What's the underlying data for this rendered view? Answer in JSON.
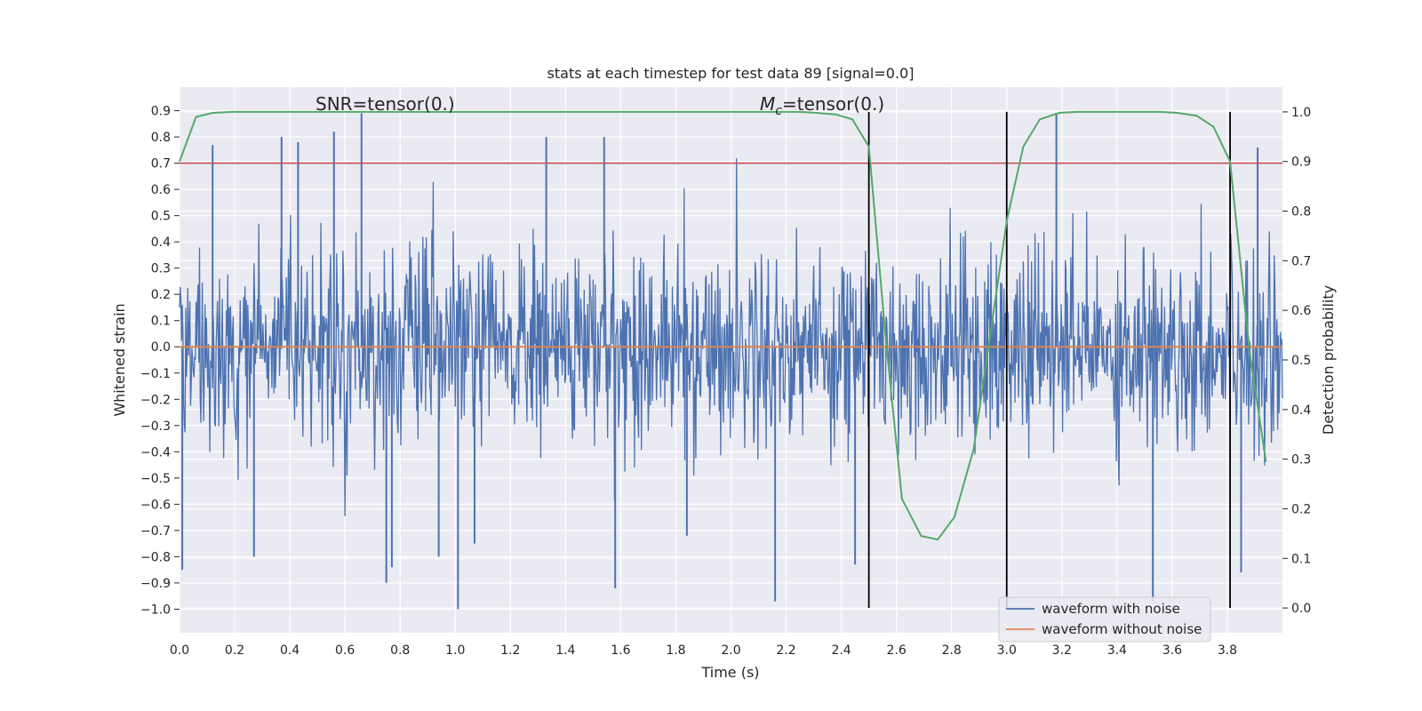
{
  "chart_data": {
    "type": "line",
    "title": "stats at each timestep for test data 89 [signal=0.0]",
    "xlabel": "Time (s)",
    "ylabel_left": "Whitened strain",
    "ylabel_right": "Detection probability",
    "xlim": [
      0.0,
      4.0
    ],
    "ylim_left": [
      -1.09,
      0.99
    ],
    "ylim_right": [
      -0.05,
      1.05
    ],
    "x_ticks": [
      "0.0",
      "0.2",
      "0.4",
      "0.6",
      "0.8",
      "1.0",
      "1.2",
      "1.4",
      "1.6",
      "1.8",
      "2.0",
      "2.2",
      "2.4",
      "2.6",
      "2.8",
      "3.0",
      "3.2",
      "3.4",
      "3.6",
      "3.8"
    ],
    "y_left_ticks": [
      "0.9",
      "0.8",
      "0.7",
      "0.6",
      "0.5",
      "0.4",
      "0.3",
      "0.2",
      "0.1",
      "0.0",
      "−0.1",
      "−0.2",
      "−0.3",
      "−0.4",
      "−0.5",
      "−0.6",
      "−0.7",
      "−0.8",
      "−0.9",
      "−1.0"
    ],
    "y_right_ticks": [
      "1.0",
      "0.9",
      "0.8",
      "0.7",
      "0.6",
      "0.5",
      "0.4",
      "0.3",
      "0.2",
      "0.1",
      "0.0"
    ],
    "grid": true,
    "legend_position": "lower-right",
    "legend": [
      "waveform with noise",
      "waveform without noise"
    ],
    "annotations": {
      "snr": "SNR=tensor(0.)",
      "mc_symbol": "M",
      "mc_subscript": "c",
      "mc_value": "=tensor(0.)"
    },
    "series": [
      {
        "name": "waveform with noise",
        "color": "#4c72b0",
        "axis": "left",
        "style": "dense noise, approx range -1.0 to 0.89",
        "peaks_x": [
          0.01,
          0.12,
          0.27,
          0.37,
          0.43,
          0.56,
          0.66,
          0.75,
          0.77,
          0.94,
          1.01,
          1.07,
          1.33,
          1.54,
          1.58,
          1.84,
          2.16,
          2.45,
          3.18,
          3.53,
          3.85,
          3.91
        ],
        "peaks_y": [
          -0.85,
          0.77,
          -0.8,
          0.8,
          0.78,
          0.82,
          0.89,
          -0.9,
          -0.84,
          -0.8,
          -1.0,
          -0.75,
          0.8,
          0.8,
          -0.92,
          -0.72,
          -0.97,
          -0.83,
          0.89,
          -0.97,
          -0.86,
          0.76
        ]
      },
      {
        "name": "waveform without noise",
        "color": "#dd8452",
        "axis": "left",
        "x": [
          0.0,
          4.0
        ],
        "y": [
          0.0,
          0.0
        ]
      },
      {
        "name": "detection probability",
        "color": "#55a868",
        "axis": "right",
        "x": [
          0.0,
          0.06,
          0.12,
          0.19,
          0.25,
          0.31,
          0.38,
          0.44,
          0.5,
          0.56,
          0.62,
          0.69,
          0.75,
          0.81,
          0.88,
          0.94,
          1.0,
          1.06,
          1.12,
          1.19,
          1.25,
          1.31,
          1.38,
          1.44,
          1.5,
          1.56,
          1.62,
          1.69,
          1.75,
          1.81,
          1.88,
          1.94,
          2.0,
          2.06,
          2.12,
          2.19,
          2.25,
          2.31,
          2.38,
          2.44,
          2.5,
          2.56,
          2.62,
          2.69,
          2.75,
          2.81,
          2.88,
          2.94,
          3.0,
          3.06,
          3.12,
          3.19,
          3.25,
          3.31,
          3.38,
          3.44,
          3.5,
          3.56,
          3.62,
          3.69,
          3.75,
          3.81,
          3.88,
          3.94
        ],
        "y": [
          0.9,
          0.99,
          0.998,
          1.0,
          1.0,
          1.0,
          1.0,
          1.0,
          1.0,
          1.0,
          1.0,
          1.0,
          1.0,
          1.0,
          1.0,
          1.0,
          1.0,
          1.0,
          1.0,
          1.0,
          1.0,
          1.0,
          1.0,
          1.0,
          1.0,
          1.0,
          1.0,
          1.0,
          1.0,
          1.0,
          1.0,
          1.0,
          1.0,
          1.0,
          1.0,
          1.0,
          1.0,
          0.998,
          0.995,
          0.985,
          0.93,
          0.55,
          0.22,
          0.145,
          0.138,
          0.183,
          0.32,
          0.55,
          0.78,
          0.93,
          0.985,
          0.998,
          1.0,
          1.0,
          1.0,
          1.0,
          1.0,
          1.0,
          0.998,
          0.992,
          0.97,
          0.9,
          0.52,
          0.295
        ]
      }
    ],
    "hlines": [
      {
        "y": 0.7,
        "axis": "left",
        "color": "#c44e52"
      }
    ],
    "vlines": [
      {
        "x": 2.5,
        "color": "#000000"
      },
      {
        "x": 3.0,
        "color": "#000000"
      },
      {
        "x": 3.81,
        "color": "#000000"
      }
    ]
  }
}
